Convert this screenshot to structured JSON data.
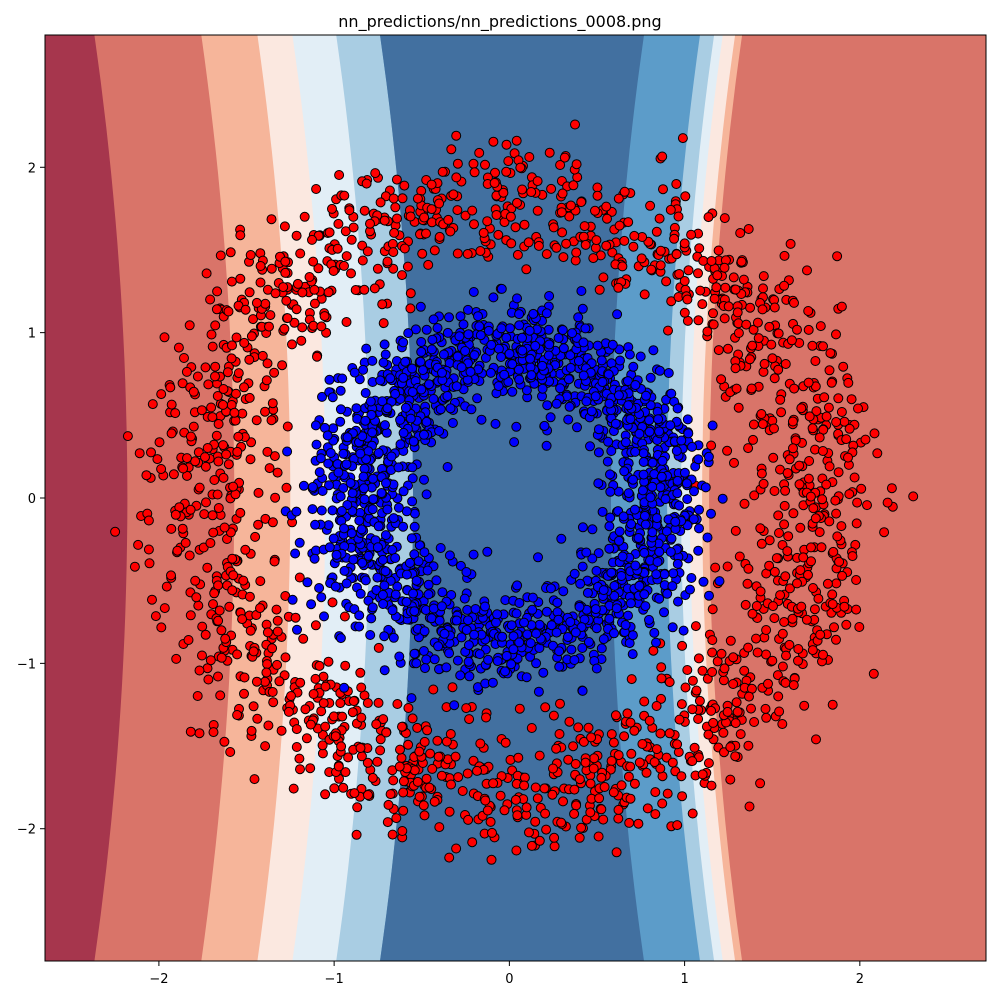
{
  "chart_data": {
    "type": "scatter",
    "title": "nn_predictions/nn_predictions_0008.png",
    "xlabel": "",
    "ylabel": "",
    "xlim": [
      -2.65,
      2.72
    ],
    "ylim": [
      -2.8,
      2.8
    ],
    "xticks": [
      -2,
      -1,
      0,
      1,
      2
    ],
    "yticks": [
      -2,
      -1,
      0,
      1,
      2
    ],
    "grid": false,
    "legend": "none",
    "background": {
      "type": "filled-contour",
      "colormap": "RdBu",
      "description": "decision-function contours, red outside, blue in central vertical band",
      "contour_boundaries_at_y0": {
        "left": [
          -2.18,
          -1.57,
          -1.25,
          -1.05,
          -0.8,
          -0.55
        ],
        "right": [
          0.58,
          0.9,
          0.98,
          1.03,
          1.1,
          1.14
        ]
      },
      "colors_outer_to_inner": [
        "#a6364d",
        "#d97469",
        "#f6b59a",
        "#fbe8e0",
        "#e2eef6",
        "#a9cde3",
        "#5c9cc9",
        "#4270a0"
      ]
    },
    "series": [
      {
        "class": "outer-ring",
        "color": "#ff0000",
        "edge_color": "#000000",
        "shape": "ring",
        "radius_mean": 1.76,
        "radius_spread": 0.2,
        "x_scale": 1.0,
        "y_scale": 1.0,
        "count": 1800
      },
      {
        "class": "inner-ring",
        "color": "#0000ff",
        "edge_color": "#000000",
        "shape": "ring",
        "radius_mean": 0.88,
        "radius_spread": 0.16,
        "x_scale": 1.0,
        "y_scale": 1.0,
        "count": 1800
      }
    ]
  }
}
